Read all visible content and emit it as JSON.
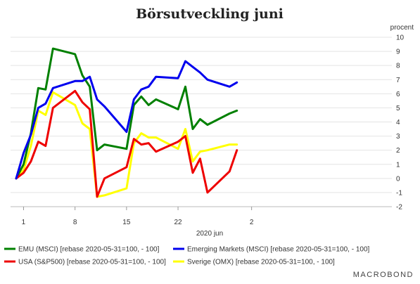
{
  "chart_data": {
    "type": "line",
    "title": "Börsutveckling juni",
    "y_unit": "procent",
    "xlabel": "2020 jun",
    "x_ticks": [
      "1",
      "8",
      "15",
      "22",
      "2"
    ],
    "ylim": [
      -2,
      10
    ],
    "y_ticks": [
      -2,
      -1,
      0,
      1,
      2,
      3,
      4,
      5,
      6,
      7,
      8,
      9,
      10
    ],
    "grid": "horizontal",
    "dates": [
      "05-31",
      "06-01",
      "06-02",
      "06-03",
      "06-04",
      "06-05",
      "06-08",
      "06-09",
      "06-10",
      "06-11",
      "06-12",
      "06-15",
      "06-16",
      "06-17",
      "06-18",
      "06-19",
      "06-22",
      "06-23",
      "06-24",
      "06-25",
      "06-26",
      "06-29",
      "06-30",
      "07-01"
    ],
    "series": [
      {
        "name": "EMU (MSCI) [rebase 2020-05-31=100, - 100]",
        "color": "#008000",
        "values": [
          0,
          1.0,
          3.2,
          6.4,
          6.3,
          9.2,
          8.8,
          7.3,
          6.5,
          2.0,
          2.4,
          2.1,
          5.2,
          5.8,
          5.2,
          5.6,
          4.9,
          6.5,
          3.5,
          4.2,
          3.8,
          4.6,
          4.8,
          null
        ]
      },
      {
        "name": "Emerging Markets (MSCI) [rebase 2020-05-31=100, - 100]",
        "color": "#0000ee",
        "values": [
          0,
          1.8,
          3.1,
          5.0,
          5.3,
          6.4,
          6.9,
          6.9,
          7.2,
          5.6,
          5.1,
          3.3,
          5.6,
          6.3,
          6.5,
          7.2,
          7.1,
          8.3,
          7.9,
          7.5,
          7.0,
          6.5,
          6.8,
          null
        ]
      },
      {
        "name": "USA (S&P500) [rebase 2020-05-31=100, - 100]",
        "color": "#ee0000",
        "values": [
          0,
          0.4,
          1.2,
          2.6,
          2.3,
          5.0,
          6.2,
          5.4,
          4.9,
          -1.3,
          0.0,
          0.8,
          2.8,
          2.4,
          2.5,
          1.9,
          2.6,
          3.0,
          0.4,
          1.4,
          -1.0,
          0.5,
          2.0,
          null
        ]
      },
      {
        "name": "Sverige (OMX) [rebase 2020-05-31=100, - 100]",
        "color": "#ffff00",
        "values": [
          0,
          0.6,
          2.3,
          4.8,
          4.5,
          6.1,
          5.2,
          3.9,
          3.5,
          -1.3,
          -1.2,
          -0.7,
          2.5,
          3.2,
          2.9,
          2.9,
          2.1,
          3.5,
          1.2,
          1.9,
          2.0,
          2.4,
          2.4,
          null
        ]
      }
    ]
  },
  "brand": "MACROBOND"
}
